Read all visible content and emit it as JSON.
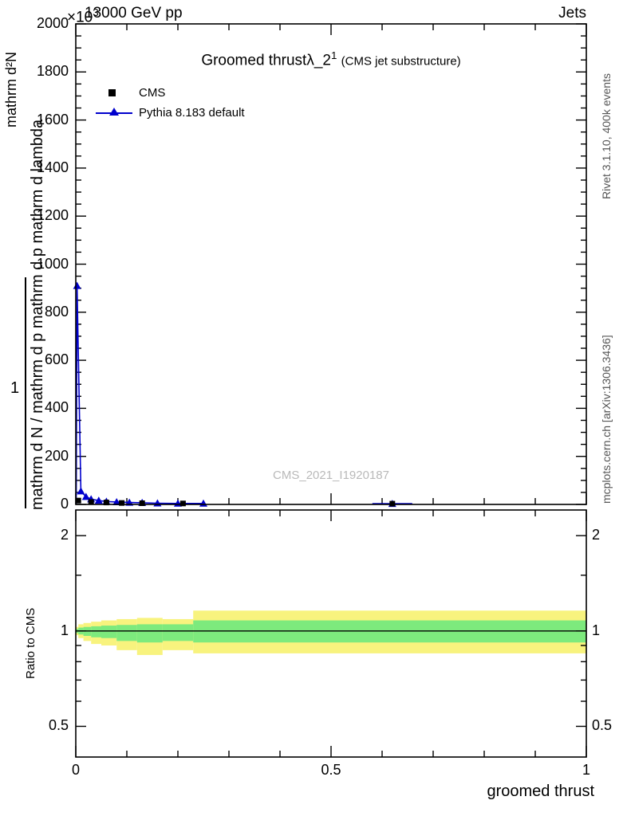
{
  "header": {
    "scale_note": "×10",
    "scale_exp": "3",
    "beam": "13000 GeV pp",
    "category": "Jets"
  },
  "title": {
    "prefix": "Groomed thrust",
    "symbol": "λ_2",
    "superscript": "1",
    "suffix": "(CMS jet substructure)"
  },
  "legend": {
    "items": [
      {
        "label": "CMS",
        "marker": "black-square"
      },
      {
        "label": "Pythia 8.183 default",
        "marker": "blue-line-triangle"
      }
    ]
  },
  "watermark": "CMS_2021_I1920187",
  "sidebar_right": {
    "top": "Rivet 3.1.10,  400k events",
    "bottom": "mcplots.cern.ch [arXiv:1306.3436]"
  },
  "ylabel": {
    "outer": "mathrm d²N",
    "numerator": "1",
    "denominator": "mathrm d N / mathrm d p  mathrm d p  mathrm d lambda"
  },
  "xlabel": "groomed thrust",
  "colors": {
    "pythia": "#0000cd",
    "cms": "#000000",
    "band_yellow": "#f8f37e",
    "band_green": "#7dea7d",
    "watermark": "#b9b9b9",
    "frame": "#000000"
  },
  "chart_data": {
    "type": "line",
    "title": "Groomed thrust λ_2^1 (CMS jet substructure)",
    "xlabel": "groomed thrust",
    "ylabel": "1/N mathrm d²N / mathrm d p mathrm d p mathrm d lambda (×10³)",
    "xlim": [
      0,
      1
    ],
    "ylim": [
      0,
      2000
    ],
    "xticks": [
      0,
      0.5,
      1
    ],
    "xtick_labels": [
      "0",
      "0.5",
      "1"
    ],
    "x_minor_step": 0.1,
    "yticks": [
      0,
      200,
      400,
      600,
      800,
      1000,
      1200,
      1400,
      1600,
      1800,
      2000
    ],
    "y_minor_step": 50,
    "y_scale_note": "×10³",
    "legend_position": "top-left-inside",
    "grid": false,
    "series": [
      {
        "name": "CMS",
        "type": "scatter",
        "marker": "square",
        "color": "#000000",
        "x": [
          0.005,
          0.03,
          0.06,
          0.09,
          0.13,
          0.21,
          0.62
        ],
        "y": [
          16,
          10,
          8,
          6,
          5,
          4,
          3
        ]
      },
      {
        "name": "Pythia 8.183 default",
        "type": "line",
        "marker": "triangle",
        "color": "#0000cd",
        "x": [
          0.0025,
          0.01,
          0.02,
          0.03,
          0.045,
          0.06,
          0.08,
          0.105,
          0.13,
          0.16,
          0.2,
          0.25,
          0.62
        ],
        "y": [
          910,
          55,
          32,
          22,
          16,
          12,
          10,
          8,
          7,
          5,
          4,
          4,
          3
        ]
      }
    ],
    "ratio": {
      "ylabel": "Ratio to CMS",
      "scale": "log",
      "ylim": [
        0.4,
        2.41
      ],
      "yticks": [
        0.5,
        1,
        2
      ],
      "ytick_labels": [
        "0.5",
        "1",
        "2"
      ],
      "y_minor": [
        0.6,
        0.7,
        0.8,
        0.9,
        1.5
      ],
      "reference_line": 1,
      "bands": {
        "yellow": [
          {
            "x1": 0,
            "x2": 0.005,
            "lo": 0.97,
            "hi": 1.03
          },
          {
            "x1": 0.005,
            "x2": 0.015,
            "lo": 0.95,
            "hi": 1.05
          },
          {
            "x1": 0.015,
            "x2": 0.03,
            "lo": 0.93,
            "hi": 1.06
          },
          {
            "x1": 0.03,
            "x2": 0.05,
            "lo": 0.91,
            "hi": 1.07
          },
          {
            "x1": 0.05,
            "x2": 0.08,
            "lo": 0.9,
            "hi": 1.08
          },
          {
            "x1": 0.08,
            "x2": 0.12,
            "lo": 0.87,
            "hi": 1.09
          },
          {
            "x1": 0.12,
            "x2": 0.17,
            "lo": 0.84,
            "hi": 1.1
          },
          {
            "x1": 0.17,
            "x2": 0.23,
            "lo": 0.87,
            "hi": 1.09
          },
          {
            "x1": 0.23,
            "x2": 1,
            "lo": 0.85,
            "hi": 1.16
          }
        ],
        "green": [
          {
            "x1": 0,
            "x2": 0.005,
            "lo": 0.985,
            "hi": 1.015
          },
          {
            "x1": 0.005,
            "x2": 0.015,
            "lo": 0.975,
            "hi": 1.025
          },
          {
            "x1": 0.015,
            "x2": 0.03,
            "lo": 0.965,
            "hi": 1.03
          },
          {
            "x1": 0.03,
            "x2": 0.05,
            "lo": 0.955,
            "hi": 1.035
          },
          {
            "x1": 0.05,
            "x2": 0.08,
            "lo": 0.95,
            "hi": 1.04
          },
          {
            "x1": 0.08,
            "x2": 0.12,
            "lo": 0.93,
            "hi": 1.045
          },
          {
            "x1": 0.12,
            "x2": 0.17,
            "lo": 0.92,
            "hi": 1.05
          },
          {
            "x1": 0.17,
            "x2": 0.23,
            "lo": 0.93,
            "hi": 1.05
          },
          {
            "x1": 0.23,
            "x2": 1,
            "lo": 0.92,
            "hi": 1.08
          }
        ]
      }
    }
  }
}
